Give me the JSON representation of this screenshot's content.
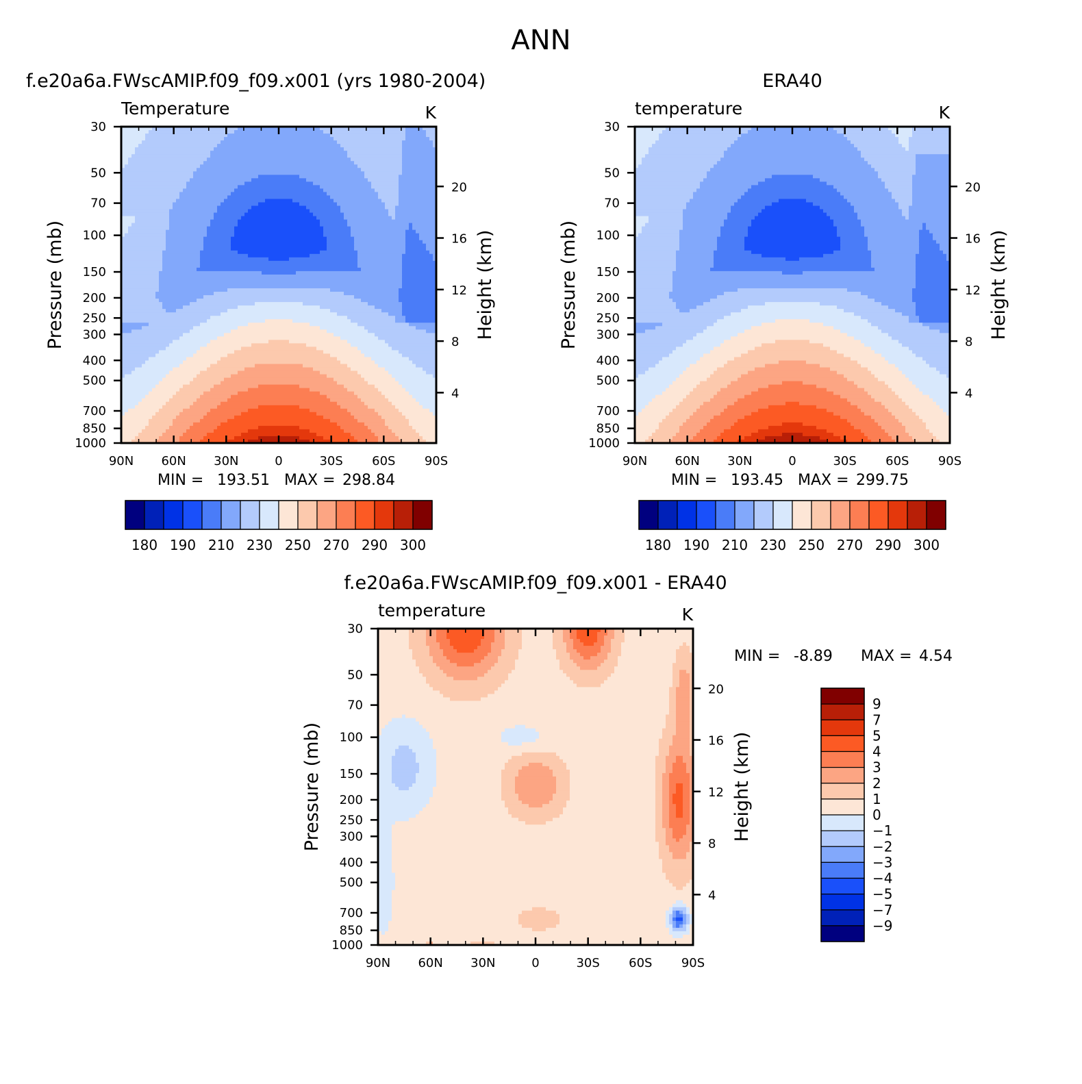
{
  "figure_title": "ANN",
  "chart_data": [
    {
      "id": "model",
      "type": "contour",
      "title": "f.e20a6a.FWscAMIP.f09_f09.x001 (yrs 1980-2004)",
      "variable": "Temperature",
      "units": "K",
      "xlabel": "",
      "ylabel": "Pressure (mb)",
      "ylabel_right": "Height (km)",
      "x_ticks": [
        "90N",
        "60N",
        "30N",
        "0",
        "30S",
        "60S",
        "90S"
      ],
      "y_ticks": [
        "30",
        "50",
        "70",
        "100",
        "150",
        "200",
        "250",
        "300",
        "400",
        "500",
        "700",
        "850",
        "1000"
      ],
      "y_ticks_right": [
        "20",
        "16",
        "12",
        "8",
        "4"
      ],
      "stats": {
        "min_label": "MIN =",
        "min": "193.51",
        "max_label": "MAX =",
        "max": "298.84"
      },
      "colorbar_labels": [
        "180",
        "190",
        "210",
        "230",
        "250",
        "270",
        "290",
        "300"
      ],
      "levels": [
        180,
        185,
        190,
        200,
        210,
        220,
        230,
        240,
        250,
        260,
        270,
        280,
        290,
        295,
        300
      ],
      "field_summary": {
        "tropopause_min_K": 193.51,
        "surface_max_K": 298.84,
        "min_location": "equator ~100 mb",
        "max_location": "equator ~1000 mb"
      }
    },
    {
      "id": "obs",
      "type": "contour",
      "title": "ERA40",
      "variable": "temperature",
      "units": "K",
      "xlabel": "",
      "ylabel": "Pressure (mb)",
      "ylabel_right": "Height (km)",
      "x_ticks": [
        "90N",
        "60N",
        "30N",
        "0",
        "30S",
        "60S",
        "90S"
      ],
      "y_ticks": [
        "30",
        "50",
        "70",
        "100",
        "150",
        "200",
        "250",
        "300",
        "400",
        "500",
        "700",
        "850",
        "1000"
      ],
      "y_ticks_right": [
        "20",
        "16",
        "12",
        "8",
        "4"
      ],
      "stats": {
        "min_label": "MIN =",
        "min": "193.45",
        "max_label": "MAX =",
        "max": "299.75"
      },
      "colorbar_labels": [
        "180",
        "190",
        "210",
        "230",
        "250",
        "270",
        "290",
        "300"
      ],
      "levels": [
        180,
        185,
        190,
        200,
        210,
        220,
        230,
        240,
        250,
        260,
        270,
        280,
        290,
        295,
        300
      ],
      "field_summary": {
        "tropopause_min_K": 193.45,
        "surface_max_K": 299.75
      }
    },
    {
      "id": "diff",
      "type": "contour",
      "title": "f.e20a6a.FWscAMIP.f09_f09.x001 - ERA40",
      "variable": "temperature",
      "units": "K",
      "xlabel": "",
      "ylabel": "Pressure (mb)",
      "ylabel_right": "Height (km)",
      "x_ticks": [
        "90N",
        "60N",
        "30N",
        "0",
        "30S",
        "60S",
        "90S"
      ],
      "y_ticks": [
        "30",
        "50",
        "70",
        "100",
        "150",
        "200",
        "250",
        "300",
        "400",
        "500",
        "700",
        "850",
        "1000"
      ],
      "y_ticks_right": [
        "20",
        "16",
        "12",
        "8",
        "4"
      ],
      "stats": {
        "min_label": "MIN =",
        "min": "-8.89",
        "max_label": "MAX =",
        "max": "4.54"
      },
      "colorbar_labels": [
        "9",
        "7",
        "5",
        "4",
        "3",
        "2",
        "1",
        "0",
        "−1",
        "−2",
        "−3",
        "−4",
        "−5",
        "−7",
        "−9"
      ],
      "levels": [
        -9,
        -7,
        -5,
        -4,
        -3,
        -2,
        -1,
        0,
        1,
        2,
        3,
        4,
        5,
        7,
        9
      ],
      "field_summary": {
        "min_K": -8.89,
        "max_K": 4.54
      }
    }
  ],
  "colors": {
    "absolute": [
      "#00007f",
      "#0021b8",
      "#0032e6",
      "#1a50fa",
      "#4a7cf8",
      "#82a8fb",
      "#b3cbfc",
      "#d8e8fc",
      "#fde6d6",
      "#fcc9ad",
      "#fca583",
      "#fc7e53",
      "#fc5a24",
      "#e4380c",
      "#b81f07",
      "#800000"
    ],
    "difference": [
      "#800000",
      "#b81f07",
      "#e4380c",
      "#fc5a24",
      "#fc7e53",
      "#fca583",
      "#fcc9ad",
      "#fde6d6",
      "#d8e8fc",
      "#b3cbfc",
      "#82a8fb",
      "#4a7cf8",
      "#1a50fa",
      "#0032e6",
      "#0021b8",
      "#00007f"
    ]
  }
}
